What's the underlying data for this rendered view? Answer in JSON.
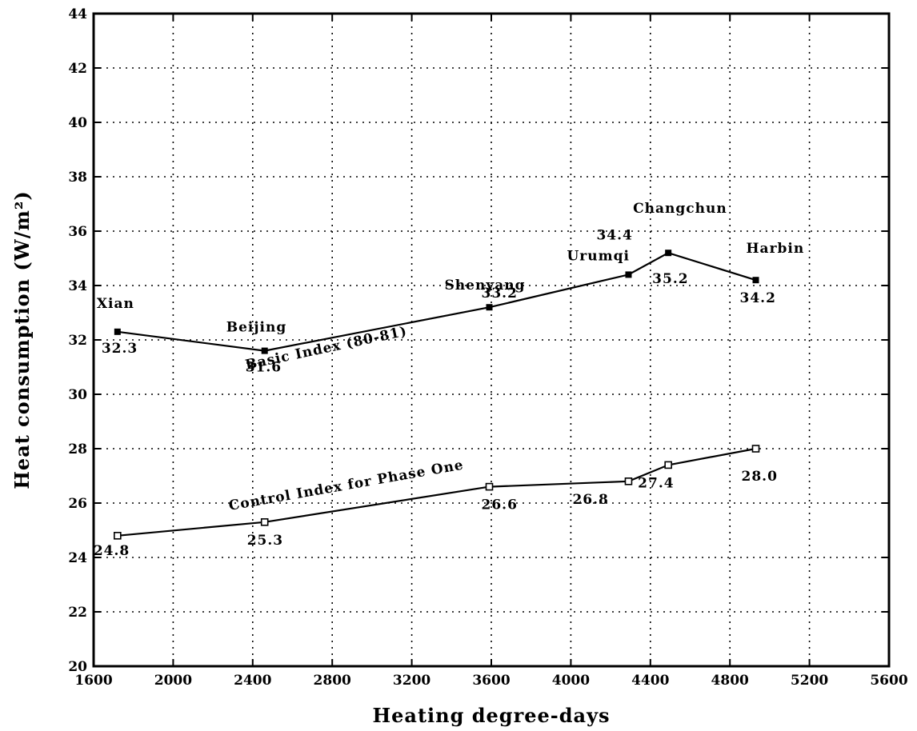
{
  "chart_data": {
    "type": "line",
    "xlabel": "Heating degree-days",
    "ylabel": "Heat consumption (W/m²)",
    "xlim": [
      1600,
      5600
    ],
    "ylim": [
      20,
      44
    ],
    "x_ticks": [
      1600,
      2000,
      2400,
      2800,
      3200,
      3600,
      4000,
      4400,
      4800,
      5200,
      5600
    ],
    "y_ticks": [
      20,
      22,
      24,
      26,
      28,
      30,
      32,
      34,
      36,
      38,
      40,
      42,
      44
    ],
    "grid": true,
    "series": [
      {
        "name": "Basic Index (80-81)",
        "marker": "filled-square",
        "points": [
          {
            "city": "Xian",
            "x": 1720,
            "y": 32.3,
            "value_label": "32.3"
          },
          {
            "city": "Beijing",
            "x": 2460,
            "y": 31.6,
            "value_label": "31.6"
          },
          {
            "city": "Shenyang",
            "x": 3590,
            "y": 33.2,
            "value_label": "33.2"
          },
          {
            "city": "Urumqi",
            "x": 4290,
            "y": 34.4,
            "value_label": "34.4"
          },
          {
            "city": "Changchun",
            "x": 4490,
            "y": 35.2,
            "value_label": "35.2"
          },
          {
            "city": "Harbin",
            "x": 4930,
            "y": 34.2,
            "value_label": "34.2"
          }
        ]
      },
      {
        "name": "Control Index for Phase One",
        "marker": "open-square",
        "points": [
          {
            "x": 1720,
            "y": 24.8,
            "value_label": "24.8"
          },
          {
            "x": 2460,
            "y": 25.3,
            "value_label": "25.3"
          },
          {
            "x": 3590,
            "y": 26.6,
            "value_label": "26.6"
          },
          {
            "x": 4290,
            "y": 26.8,
            "value_label": "26.8"
          },
          {
            "x": 4490,
            "y": 27.4,
            "value_label": "27.4"
          },
          {
            "x": 4930,
            "y": 28.0,
            "value_label": "28.0"
          }
        ]
      }
    ]
  }
}
